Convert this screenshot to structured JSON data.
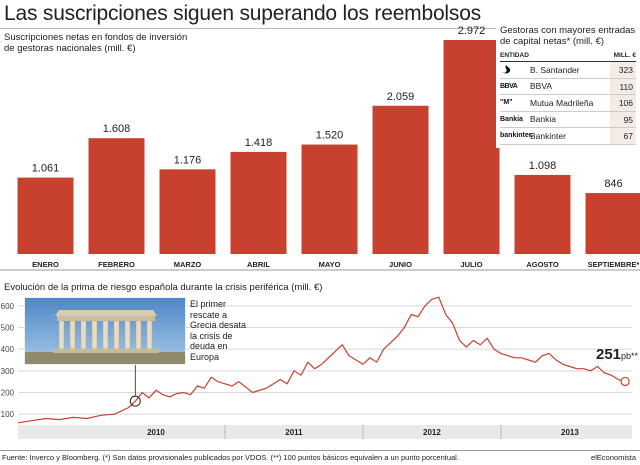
{
  "title": "Las suscripciones siguen superando los reembolsos",
  "chart1": {
    "subtitle": "Suscripciones netas en fondos de inversión de gestoras nacionales (mill. €)"
  },
  "inset": {
    "title": "Gestoras con mayores entradas de capital netas* (mill. €)",
    "col_entity": "ENTIDAD",
    "col_value": "MILL. €",
    "rows": [
      {
        "logo": "santander-logo",
        "name": "B. Santander",
        "value": "323"
      },
      {
        "logo": "bbva-logo",
        "logo_text": "BBVA",
        "name": "BBVA",
        "value": "110"
      },
      {
        "logo": "mutua-logo",
        "logo_text": "\"M\"",
        "name": "Mutua Madrileña",
        "value": "106"
      },
      {
        "logo": "bankia-logo",
        "logo_text": "Bankia",
        "name": "Bankia",
        "value": "95"
      },
      {
        "logo": "bankinter-logo",
        "logo_text": "bankinter.",
        "name": "Bankinter",
        "value": "67"
      }
    ]
  },
  "chart2": {
    "subtitle": "Evolución de la prima de riesgo española durante la crisis periférica (mill. €)",
    "annotation": "El primer rescate a Grecia desata la crisis de deuda en Europa",
    "current_value": "251",
    "current_unit": "pb**"
  },
  "footer": {
    "source": "Fuente: Inverco y Bloomberg. (*) Son datos provisionales publicados por VDOS. (**) 100 puntos básicos equivalen a un punto porcentual.",
    "brand": "elEconomista"
  },
  "colors": {
    "bar": "#c8402e",
    "line": "#c8402e",
    "grid": "#d8d8d8",
    "inset_value_bg": "#f3ebe4"
  },
  "chart_data": [
    {
      "type": "bar",
      "categories": [
        "ENERO",
        "FEBRERO",
        "MARZO",
        "ABRIL",
        "MAYO",
        "JUNIO",
        "JULIO",
        "AGOSTO",
        "SEPTIEMBRE*"
      ],
      "values": [
        1061,
        1608,
        1176,
        1418,
        1520,
        2059,
        2972,
        1098,
        846
      ],
      "value_labels": [
        "1.061",
        "1.608",
        "1.176",
        "1.418",
        "1.520",
        "2.059",
        "2.972",
        "1.098",
        "846"
      ],
      "title": "Suscripciones netas en fondos de inversión de gestoras nacionales (mill. €)",
      "ylim": [
        0,
        3000
      ]
    },
    {
      "type": "line",
      "title": "Evolución de la prima de riesgo española durante la crisis periférica (mill. €)",
      "x_ticks": [
        "2010",
        "2011",
        "2012",
        "2013"
      ],
      "y_ticks": [
        100,
        200,
        300,
        400,
        500,
        600
      ],
      "ylim": [
        50,
        650
      ],
      "xlim": [
        2009.5,
        2013.95
      ],
      "grid": true,
      "series": [
        {
          "x": [
            2009.5,
            2009.6,
            2009.7,
            2009.8,
            2009.9,
            2010.0,
            2010.1,
            2010.2,
            2010.3,
            2010.35,
            2010.4,
            2010.45,
            2010.5,
            2010.55,
            2010.6,
            2010.65,
            2010.7,
            2010.75,
            2010.8,
            2010.85,
            2010.9,
            2010.95,
            2011.0,
            2011.05,
            2011.1,
            2011.2,
            2011.3,
            2011.4,
            2011.45,
            2011.5,
            2011.55,
            2011.6,
            2011.65,
            2011.7,
            2011.75,
            2011.8,
            2011.85,
            2011.9,
            2011.95,
            2012.0,
            2012.05,
            2012.1,
            2012.15,
            2012.2,
            2012.25,
            2012.3,
            2012.35,
            2012.4,
            2012.45,
            2012.5,
            2012.55,
            2012.6,
            2012.65,
            2012.7,
            2012.75,
            2012.8,
            2012.85,
            2012.9,
            2012.95,
            2013.0,
            2013.05,
            2013.1,
            2013.15,
            2013.2,
            2013.25,
            2013.3,
            2013.35,
            2013.4,
            2013.45,
            2013.5,
            2013.55,
            2013.6,
            2013.65,
            2013.7,
            2013.75,
            2013.8,
            2013.85,
            2013.9
          ],
          "y": [
            60,
            70,
            80,
            75,
            85,
            80,
            95,
            100,
            130,
            160,
            200,
            175,
            210,
            190,
            180,
            195,
            200,
            190,
            230,
            220,
            270,
            250,
            240,
            230,
            250,
            200,
            220,
            260,
            240,
            300,
            280,
            340,
            310,
            330,
            360,
            390,
            420,
            370,
            350,
            330,
            360,
            340,
            400,
            430,
            460,
            500,
            560,
            550,
            600,
            630,
            640,
            560,
            520,
            440,
            410,
            440,
            420,
            450,
            400,
            380,
            370,
            360,
            360,
            350,
            340,
            370,
            380,
            350,
            330,
            320,
            310,
            310,
            300,
            320,
            290,
            280,
            260,
            251
          ]
        }
      ]
    }
  ]
}
